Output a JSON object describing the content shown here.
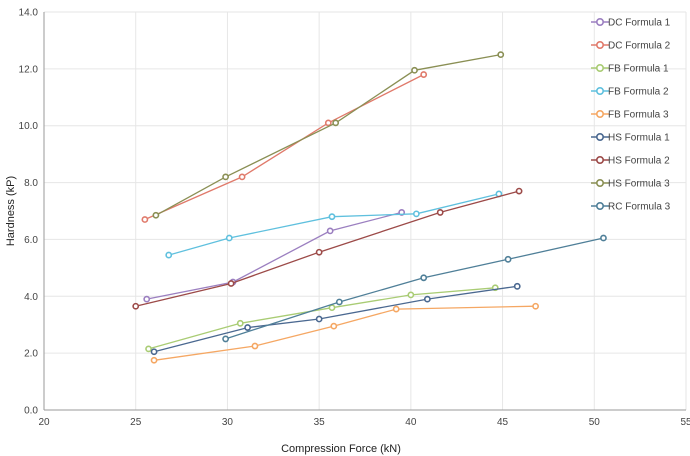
{
  "chart_data": {
    "type": "line",
    "xlabel": "Compression Force (kN)",
    "ylabel": "Hardness (kP)",
    "xlim": [
      20,
      55
    ],
    "ylim": [
      0,
      14
    ],
    "x_ticks": [
      20,
      25,
      30,
      35,
      40,
      45,
      50,
      55
    ],
    "x_tick_labels": [
      "20",
      "25",
      "30",
      "35",
      "40",
      "45",
      "50",
      "55"
    ],
    "y_ticks": [
      0,
      2,
      4,
      6,
      8,
      10,
      12,
      14
    ],
    "y_tick_labels": [
      "0.0",
      "2.0",
      "4.0",
      "6.0",
      "8.0",
      "10.0",
      "12.0",
      "14.0"
    ],
    "grid": true,
    "legend_position": "right",
    "series": [
      {
        "name": "DC Formula 1",
        "color": "#9b7fc0",
        "points": [
          [
            25.6,
            3.9
          ],
          [
            30.3,
            4.5
          ],
          [
            35.6,
            6.3
          ],
          [
            39.5,
            6.95
          ]
        ]
      },
      {
        "name": "DC Formula 2",
        "color": "#e07a6b",
        "points": [
          [
            25.5,
            6.7
          ],
          [
            30.8,
            8.2
          ],
          [
            35.5,
            10.1
          ],
          [
            40.7,
            11.8
          ]
        ]
      },
      {
        "name": "FB Formula 1",
        "color": "#a9cc74",
        "points": [
          [
            25.7,
            2.15
          ],
          [
            30.7,
            3.05
          ],
          [
            35.7,
            3.6
          ],
          [
            40.0,
            4.05
          ],
          [
            44.6,
            4.3
          ]
        ]
      },
      {
        "name": "FB Formula 2",
        "color": "#5fc0de",
        "points": [
          [
            26.8,
            5.45
          ],
          [
            30.1,
            6.05
          ],
          [
            35.7,
            6.8
          ],
          [
            40.3,
            6.9
          ],
          [
            44.8,
            7.6
          ]
        ]
      },
      {
        "name": "FB Formula 3",
        "color": "#f5a763",
        "points": [
          [
            26.0,
            1.75
          ],
          [
            31.5,
            2.25
          ],
          [
            35.8,
            2.95
          ],
          [
            39.2,
            3.55
          ],
          [
            46.8,
            3.65
          ]
        ]
      },
      {
        "name": "HS Formula 1",
        "color": "#4a6890",
        "points": [
          [
            26.0,
            2.05
          ],
          [
            31.1,
            2.9
          ],
          [
            35.0,
            3.2
          ],
          [
            40.9,
            3.9
          ],
          [
            45.8,
            4.35
          ]
        ]
      },
      {
        "name": "HS Formula 2",
        "color": "#9c4a48",
        "points": [
          [
            25.0,
            3.65
          ],
          [
            30.2,
            4.45
          ],
          [
            35.0,
            5.55
          ],
          [
            41.6,
            6.95
          ],
          [
            45.9,
            7.7
          ]
        ]
      },
      {
        "name": "HS Formula 3",
        "color": "#8a8f54",
        "points": [
          [
            26.1,
            6.85
          ],
          [
            29.9,
            8.2
          ],
          [
            35.9,
            10.1
          ],
          [
            40.2,
            11.95
          ],
          [
            44.9,
            12.5
          ]
        ]
      },
      {
        "name": "RC Formula 3",
        "color": "#4f7f98",
        "points": [
          [
            29.9,
            2.5
          ],
          [
            36.1,
            3.8
          ],
          [
            40.7,
            4.65
          ],
          [
            45.3,
            5.3
          ],
          [
            50.5,
            6.05
          ]
        ]
      }
    ]
  }
}
